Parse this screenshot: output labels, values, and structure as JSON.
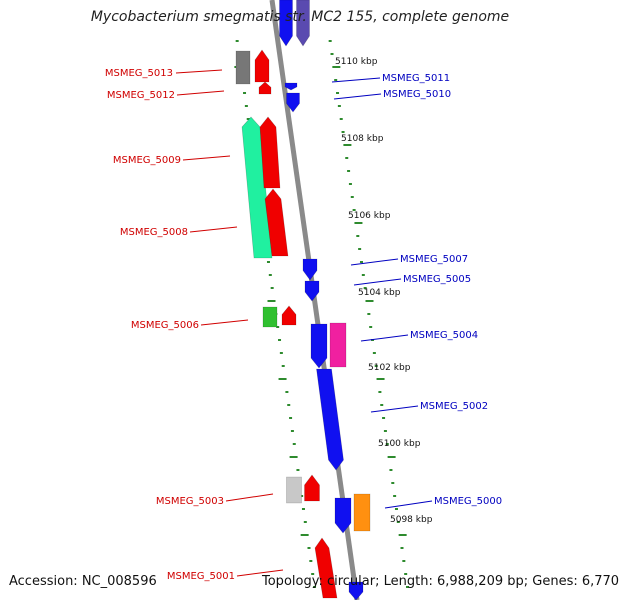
{
  "title": "Mycobacterium smegmatis str. MC2 155, complete genome",
  "footer": {
    "accession": "Accession: NC_008596",
    "topology": "Topology: circular; Length: 6,988,209 bp; Genes: 6,770"
  },
  "colors": {
    "backbone": "#8a8a8a",
    "ruler": "#2e8b2e",
    "forward_label": "#d00000",
    "reverse_label": "#0000c0",
    "red": "#f00000",
    "blue": "#1010f0",
    "slateblue": "#5a4ab0",
    "gray": "#777777",
    "lightgray": "#c8c8c8",
    "spring": "#20f0a0",
    "green": "#30c030",
    "magenta": "#f020a0",
    "orange": "#ff9010"
  },
  "ticks": [
    {
      "label": "5110 kbp"
    },
    {
      "label": "5108 kbp"
    },
    {
      "label": "5106 kbp"
    },
    {
      "label": "5104 kbp"
    },
    {
      "label": "5102 kbp"
    },
    {
      "label": "5100 kbp"
    },
    {
      "label": "5098 kbp"
    }
  ],
  "genes_left": [
    {
      "label": "MSMEG_5013"
    },
    {
      "label": "MSMEG_5012"
    },
    {
      "label": "MSMEG_5009"
    },
    {
      "label": "MSMEG_5008"
    },
    {
      "label": "MSMEG_5006"
    },
    {
      "label": "MSMEG_5003"
    },
    {
      "label": "MSMEG_5001"
    }
  ],
  "genes_right": [
    {
      "label": "MSMEG_5011"
    },
    {
      "label": "MSMEG_5010"
    },
    {
      "label": "MSMEG_5007"
    },
    {
      "label": "MSMEG_5005"
    },
    {
      "label": "MSMEG_5004"
    },
    {
      "label": "MSMEG_5002"
    },
    {
      "label": "MSMEG_5000"
    }
  ]
}
